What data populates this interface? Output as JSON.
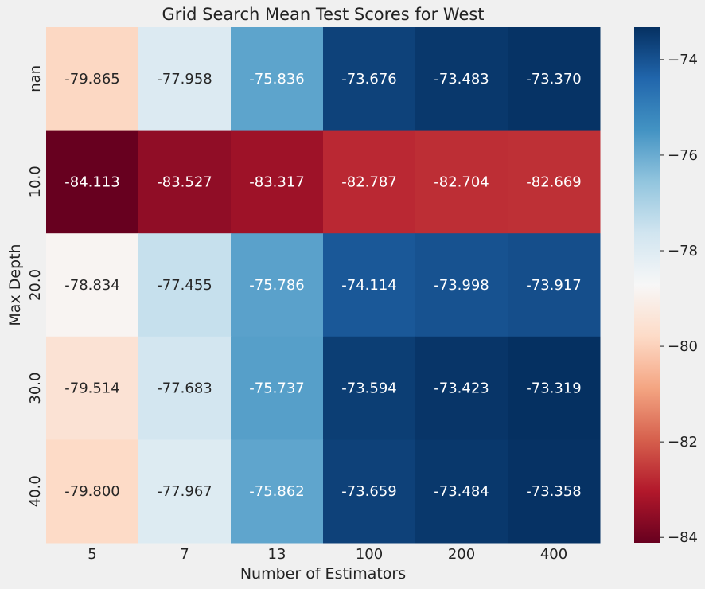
{
  "chart_data": {
    "type": "heatmap",
    "title": "Grid Search Mean Test Scores for West",
    "xlabel": "Number of Estimators",
    "ylabel": "Max Depth",
    "x_categories": [
      "5",
      "7",
      "13",
      "100",
      "200",
      "400"
    ],
    "y_categories": [
      "nan",
      "10.0",
      "20.0",
      "30.0",
      "40.0"
    ],
    "values": [
      [
        -79.865,
        -77.958,
        -75.836,
        -73.676,
        -73.483,
        -73.37
      ],
      [
        -84.113,
        -83.527,
        -83.317,
        -82.787,
        -82.704,
        -82.669
      ],
      [
        -78.834,
        -77.455,
        -75.786,
        -74.114,
        -73.998,
        -73.917
      ],
      [
        -79.514,
        -77.683,
        -75.737,
        -73.594,
        -73.423,
        -73.319
      ],
      [
        -79.8,
        -77.967,
        -75.862,
        -73.659,
        -73.484,
        -73.358
      ]
    ],
    "value_labels": [
      [
        "-79.865",
        "-77.958",
        "-75.836",
        "-73.676",
        "-73.483",
        "-73.370"
      ],
      [
        "-84.113",
        "-83.527",
        "-83.317",
        "-82.787",
        "-82.704",
        "-82.669"
      ],
      [
        "-78.834",
        "-77.455",
        "-75.786",
        "-74.114",
        "-73.998",
        "-73.917"
      ],
      [
        "-79.514",
        "-77.683",
        "-75.737",
        "-73.594",
        "-73.423",
        "-73.319"
      ],
      [
        "-79.800",
        "-77.967",
        "-75.862",
        "-73.659",
        "-73.484",
        "-73.358"
      ]
    ],
    "colormap": "RdBu",
    "color_range": [
      -84.113,
      -73.319
    ],
    "colorbar_ticks": [
      -74,
      -76,
      -78,
      -80,
      -82,
      -84
    ],
    "colorbar_tick_labels": [
      "−74",
      "−76",
      "−78",
      "−80",
      "−82",
      "−84"
    ],
    "grid": false
  }
}
